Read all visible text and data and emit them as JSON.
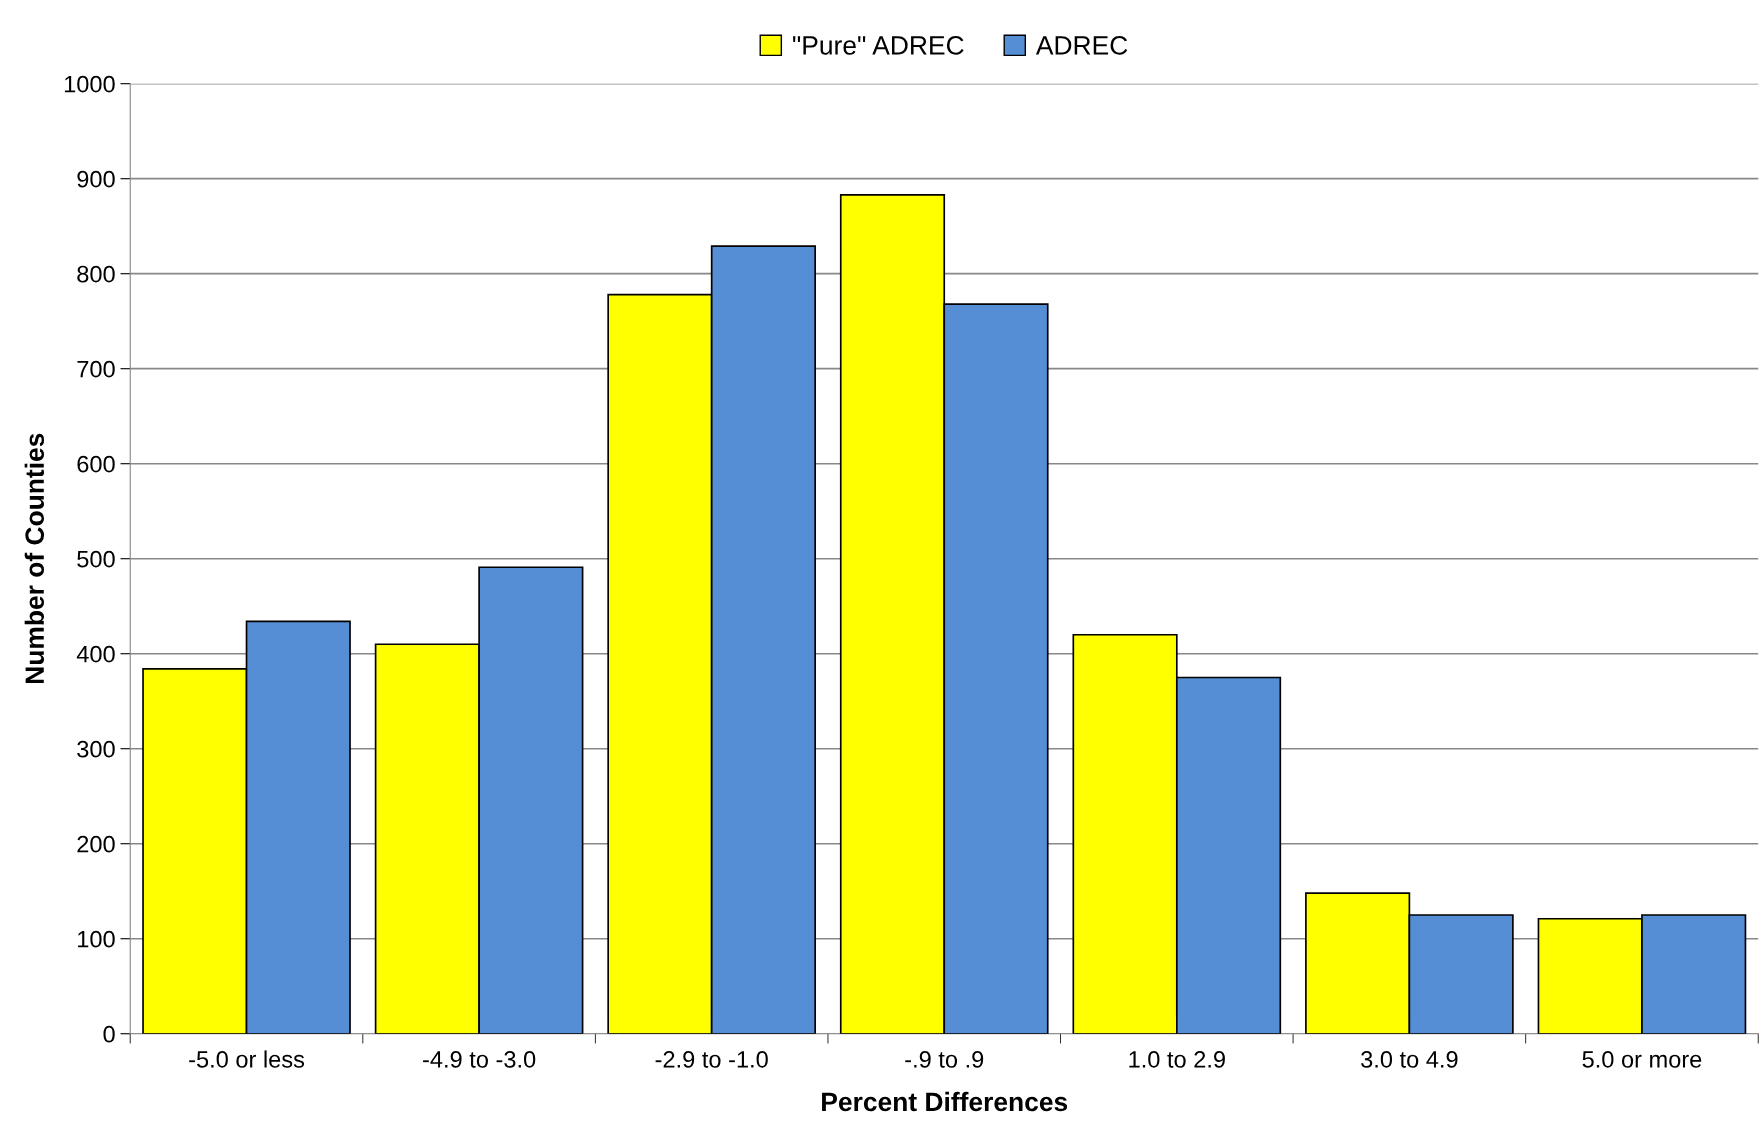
{
  "chart_data": {
    "type": "bar",
    "xlabel": "Percent Differences",
    "ylabel": "Number of Counties",
    "categories": [
      "-5.0 or less",
      "-4.9 to -3.0",
      "-2.9 to -1.0",
      "-.9 to .9",
      "1.0 to 2.9",
      "3.0 to 4.9",
      "5.0 or more"
    ],
    "series": [
      {
        "name": "\"Pure\" ADREC",
        "color": "#ffff00",
        "values": [
          384,
          410,
          778,
          883,
          420,
          148,
          121
        ]
      },
      {
        "name": "ADREC",
        "color": "#558ed5",
        "values": [
          434,
          491,
          829,
          768,
          375,
          125,
          125
        ]
      }
    ],
    "ylim": [
      0,
      1000
    ],
    "yticks": [
      0,
      100,
      200,
      300,
      400,
      500,
      600,
      700,
      800,
      900,
      1000
    ],
    "grid": "y",
    "legend": "top"
  }
}
